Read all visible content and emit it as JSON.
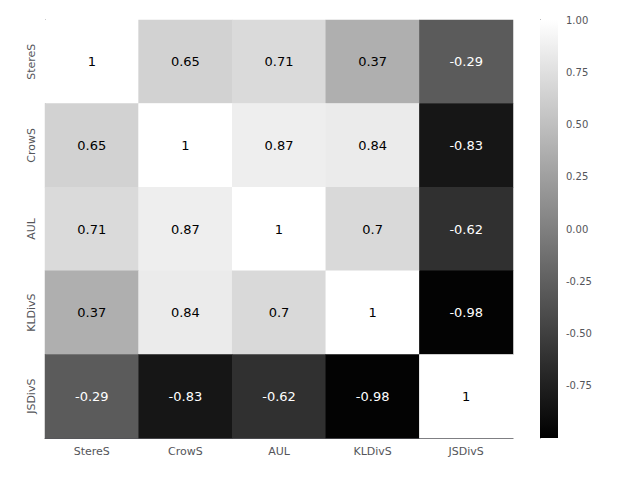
{
  "chart_data": {
    "type": "heatmap",
    "categories": [
      "StereS",
      "CrowS",
      "AUL",
      "KLDivS",
      "JSDivS"
    ],
    "values": [
      [
        1.0,
        0.65,
        0.71,
        0.37,
        -0.29
      ],
      [
        0.65,
        1.0,
        0.87,
        0.84,
        -0.83
      ],
      [
        0.71,
        0.87,
        1.0,
        0.7,
        -0.62
      ],
      [
        0.37,
        0.84,
        0.7,
        1.0,
        -0.98
      ],
      [
        -0.29,
        -0.83,
        -0.62,
        -0.98,
        1.0
      ]
    ],
    "value_labels": [
      [
        "1",
        "0.65",
        "0.71",
        "0.37",
        "-0.29"
      ],
      [
        "0.65",
        "1",
        "0.87",
        "0.84",
        "-0.83"
      ],
      [
        "0.71",
        "0.87",
        "1",
        "0.7",
        "-0.62"
      ],
      [
        "0.37",
        "0.84",
        "0.7",
        "1",
        "-0.98"
      ],
      [
        "-0.29",
        "-0.83",
        "-0.62",
        "-0.98",
        "1"
      ]
    ],
    "data_labels": true,
    "colors": [
      "#000000",
      "#ffffff"
    ],
    "colorbar_range": [
      -1.0,
      1.0
    ],
    "colorbar_ticks": [
      {
        "value": 1.0,
        "label": "1.00"
      },
      {
        "value": 0.75,
        "label": "0.75"
      },
      {
        "value": 0.5,
        "label": "0.50"
      },
      {
        "value": 0.25,
        "label": "0.25"
      },
      {
        "value": 0.0,
        "label": "0.00"
      },
      {
        "value": -0.25,
        "label": "-0.25"
      },
      {
        "value": -0.5,
        "label": "-0.50"
      },
      {
        "value": -0.75,
        "label": "-0.75"
      }
    ],
    "grid": false
  }
}
